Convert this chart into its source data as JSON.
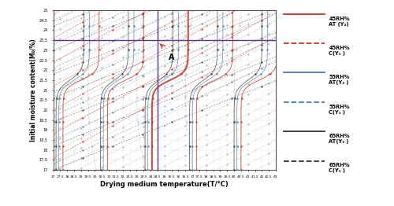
{
  "xlim": [
    27,
    43
  ],
  "ylim": [
    17,
    25
  ],
  "xticks": [
    27,
    27.5,
    28,
    28.5,
    29,
    29.5,
    30,
    30.5,
    31,
    31.5,
    32,
    32.5,
    33,
    33.5,
    34,
    34.5,
    35,
    35.5,
    36,
    36.5,
    37,
    37.5,
    38,
    38.5,
    39,
    39.5,
    40,
    40.5,
    41,
    41.5,
    42,
    42.5,
    43
  ],
  "yticks": [
    17,
    17.5,
    18,
    18.5,
    19,
    19.5,
    20,
    20.5,
    21,
    21.5,
    22,
    22.5,
    23,
    23.5,
    24,
    24.5,
    25
  ],
  "xlabel": "Drying medium temperature(T/°C)",
  "ylabel": "Initial moisture content(M₀/%)",
  "hline_y": 23.5,
  "hline_color": "#5B3A8A",
  "vline_x": 34.5,
  "vline_color": "#5B3A8A",
  "point_A_x": 35.3,
  "point_A_y": 22.85,
  "colors": {
    "45RH_AT": "#C0392B",
    "45RH_C": "#C0392B",
    "55RH_AT": "#4A7AAA",
    "55RH_C": "#4A7AAA",
    "65RH_AT": "#333333",
    "65RH_C": "#333333"
  },
  "bg_color": "#FFFFFF"
}
